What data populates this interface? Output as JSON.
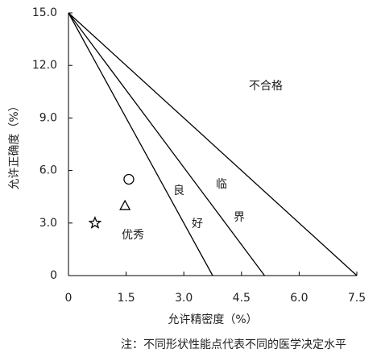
{
  "chart_data": {
    "type": "line",
    "xlabel": "允许精密度（%）",
    "ylabel": "允许正确度（%）",
    "note": "注：不同形状性能点代表不同的医学决定水平",
    "xlim": [
      0,
      7.5
    ],
    "ylim": [
      0,
      15
    ],
    "xticks": [
      0,
      1.5,
      {
        "value": 3,
        "label": "3.0"
      },
      4.5,
      {
        "value": 6,
        "label": "6.0"
      },
      7.5
    ],
    "yticks": [
      0,
      {
        "value": 3,
        "label": "3.0"
      },
      {
        "value": 6,
        "label": "6.0"
      },
      {
        "value": 9,
        "label": "9.0"
      },
      {
        "value": 12,
        "label": "12.0"
      },
      {
        "value": 15,
        "label": "15.0"
      }
    ],
    "series": [
      {
        "color": "#000000",
        "x": [
          0,
          3.75
        ],
        "values": [
          15,
          0
        ]
      },
      {
        "color": "#000000",
        "x": [
          0,
          5.1
        ],
        "values": [
          15,
          0
        ]
      },
      {
        "color": "#000000",
        "x": [
          0,
          7.5
        ],
        "values": [
          15,
          0
        ]
      }
    ],
    "points": [
      {
        "marker": "circle",
        "x": 1.57,
        "y": 5.5
      },
      {
        "marker": "triangle",
        "x": 1.47,
        "y": 4.0
      },
      {
        "marker": "star",
        "x": 0.69,
        "y": 3.0
      }
    ],
    "annotations": [
      "不合格",
      "优秀",
      "良",
      "好",
      "临",
      "界"
    ]
  }
}
